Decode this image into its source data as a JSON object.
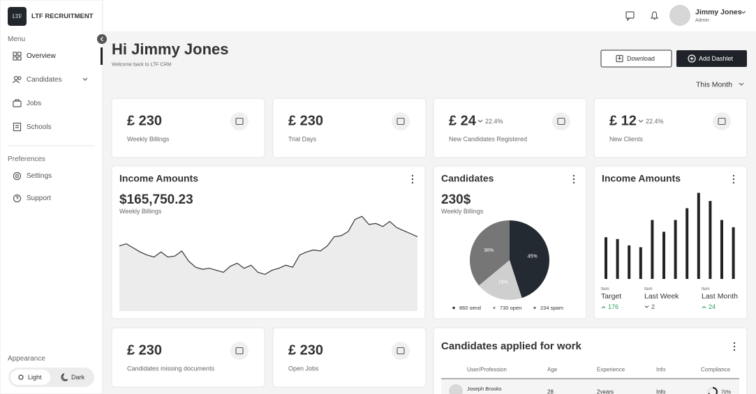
{
  "sidebar": {
    "logo": "LTF",
    "brand": "LTF RECRUITMENT",
    "menu_title": "Menu",
    "menu": [
      "Overview",
      "Candidates",
      "Jobs",
      "Schools"
    ],
    "preferences_title": "Preferences",
    "preferences": [
      "Settings",
      "Support"
    ],
    "appearance_title": "Appearance",
    "themes": [
      "Light",
      "Dark"
    ]
  },
  "topbar": {
    "user_name": "Jimmy Jones",
    "user_role": "Admin"
  },
  "header": {
    "title": "Hi Jimmy Jones",
    "subtitle": "Welcome back to LTF CRM",
    "buttons": [
      "Download",
      "Add Dashlet"
    ],
    "period": "This Month"
  },
  "stats": [
    {
      "value": "£ 230",
      "label": "Weekly Billings"
    },
    {
      "value": "£ 230",
      "label": "Trial Days"
    },
    {
      "value": "£ 24",
      "change": "22.4%",
      "label": "New Candidates Registered"
    },
    {
      "value": "£ 12",
      "change": "22.4%",
      "label": "New Clients"
    },
    {
      "value": "£ 230",
      "label": "Candidates missing documents"
    },
    {
      "value": "£ 230",
      "label": "Open Jobs"
    }
  ],
  "income": {
    "title": "Income Amounts",
    "amount": "$165,750.23",
    "caption": "Weekly Billings",
    "chart_data": {
      "type": "area",
      "values": [
        64,
        66,
        62,
        58,
        55,
        53,
        58,
        53,
        54,
        59,
        49,
        43,
        41,
        42,
        40,
        38,
        44,
        47,
        42,
        45,
        38,
        36,
        40,
        42,
        45,
        43,
        55,
        58,
        60,
        59,
        64,
        73,
        74,
        78,
        90,
        93,
        85,
        86,
        83,
        88,
        82,
        79,
        76,
        73
      ],
      "ylim": [
        0,
        100
      ],
      "color": "#333333",
      "fill": "#ececec"
    }
  },
  "candidates": {
    "title": "Candidates",
    "amount": "230$",
    "caption": "Weekly Billings",
    "chart_data": {
      "type": "pie",
      "values": [
        45,
        19,
        36
      ],
      "value_labels": [
        "45%",
        "19%",
        "36%"
      ],
      "colors": [
        "#242a31",
        "#cfcfcf",
        "#767676"
      ]
    },
    "legend": [
      "860 send",
      "730 open",
      "234 spam"
    ]
  },
  "income_items": {
    "title": "Income Amounts",
    "chart_data": {
      "type": "bar",
      "values": [
        46,
        44,
        37,
        35,
        65,
        52,
        65,
        78,
        95,
        86,
        65,
        57
      ],
      "ylim": [
        0,
        100
      ],
      "color": "#222222"
    },
    "items": [
      {
        "tag": "Item",
        "name": "Target",
        "value": "176",
        "trend": "up"
      },
      {
        "tag": "Item",
        "name": "Last Week",
        "value": "2",
        "trend": "down"
      },
      {
        "tag": "Item",
        "name": "Last Month",
        "value": "24",
        "trend": "up"
      }
    ]
  },
  "applications": {
    "title": "Candidates applied for work",
    "columns": [
      "User/Profession",
      "Age",
      "Experience",
      "Info",
      "Compliance"
    ],
    "rows": [
      [
        "Joseph Brooks",
        "28",
        "2years",
        "Info",
        {
          "value": 70,
          "label": "70%"
        }
      ]
    ]
  }
}
